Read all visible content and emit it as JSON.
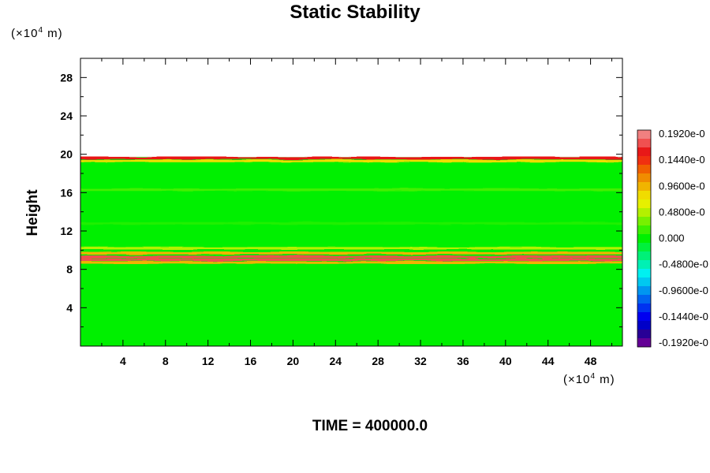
{
  "chart_data": {
    "type": "heatmap",
    "title": "Static Stability",
    "ylabel": "Height",
    "y_unit": "10^4 m",
    "x_unit": "10^4 m",
    "xlim": [
      0,
      51
    ],
    "ylim": [
      0,
      30
    ],
    "x_ticks": [
      4,
      8,
      12,
      16,
      20,
      24,
      28,
      32,
      36,
      40,
      44,
      48
    ],
    "y_ticks": [
      4,
      8,
      12,
      16,
      20,
      24,
      28
    ],
    "field_top": 19.7,
    "bands": [
      {
        "y": 19.6,
        "value": 0.016
      },
      {
        "y": 19.3,
        "value": 0.008
      },
      {
        "y": 16.3,
        "value": 0.003
      },
      {
        "y": 12.8,
        "value": 0.002
      },
      {
        "y": 10.2,
        "value": 0.005
      },
      {
        "y": 9.7,
        "value": 0.01
      },
      {
        "y": 9.3,
        "value": 0.017
      },
      {
        "y": 9.0,
        "value": 0.018
      },
      {
        "y": 8.7,
        "value": 0.01
      }
    ],
    "colorbar": {
      "labels": [
        "0.1920e-0",
        "0.1440e-0",
        "0.9600e-0",
        "0.4800e-0",
        "0.000",
        "-0.4800e-0",
        "-0.9600e-0",
        "-0.1440e-0",
        "-0.1920e-0"
      ],
      "colors": [
        "#f08080",
        "#f05050",
        "#e81818",
        "#f03010",
        "#f06000",
        "#f08c00",
        "#f0b400",
        "#f0dc00",
        "#e6f000",
        "#b4f000",
        "#78f000",
        "#3cf000",
        "#00f000",
        "#00f03c",
        "#00f078",
        "#00f0b4",
        "#00f0f0",
        "#00c8f0",
        "#0096f0",
        "#0064f0",
        "#0032f0",
        "#0000f0",
        "#0000c8",
        "#280096",
        "#640096"
      ]
    }
  },
  "time_label": "TIME = 400000.0"
}
